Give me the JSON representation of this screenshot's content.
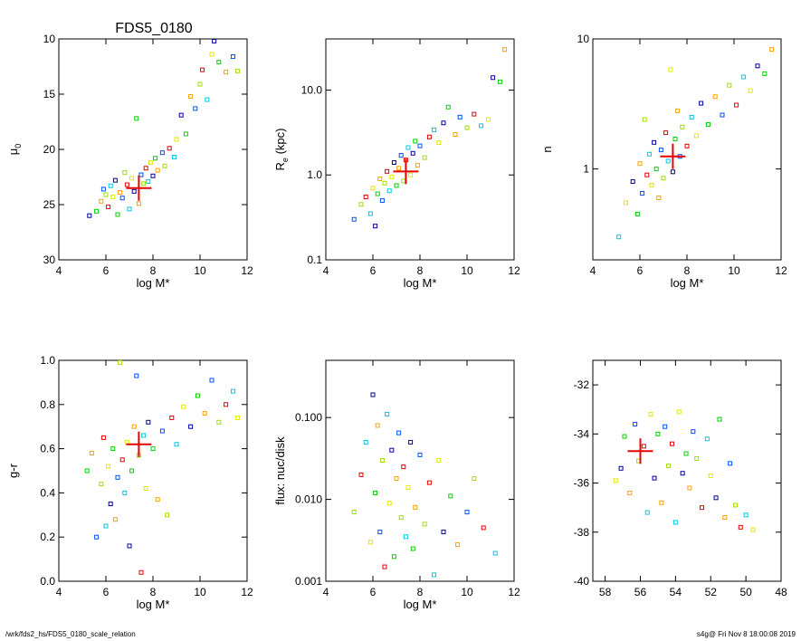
{
  "figure_title": "FDS5_0180",
  "footer": {
    "path": "/wrk/fds2_hs/FDS5_0180_scale_relation",
    "stamp": "s4g@  Fri Nov  8 18:00:08 2019"
  },
  "colors": {
    "color_scale": [
      "#0000a0",
      "#0050ff",
      "#00c8e6",
      "#00d200",
      "#a0e000",
      "#e6e600",
      "#ffa000",
      "#e60000"
    ],
    "highlight_cross": "#e60000"
  },
  "chart_data": [
    {
      "id": "mu0",
      "type": "scatter",
      "title": "FDS5_0180",
      "xlabel": "log M*",
      "ylabel_main": "μ",
      "ylabel_sub": "0",
      "xlim": [
        4,
        12
      ],
      "ylim": [
        30,
        10
      ],
      "xticks": [
        4,
        6,
        8,
        10,
        12
      ],
      "yticks": [
        10,
        15,
        20,
        25,
        30
      ],
      "ytick_labels": [
        "10",
        "15",
        "20",
        "25",
        "30"
      ],
      "marker": {
        "x": 7.4,
        "y": 23.5
      },
      "points": [
        {
          "x": 5.3,
          "y": 26.0
        },
        {
          "x": 5.6,
          "y": 25.6
        },
        {
          "x": 5.8,
          "y": 24.7
        },
        {
          "x": 5.9,
          "y": 23.6
        },
        {
          "x": 6.0,
          "y": 24.1
        },
        {
          "x": 6.1,
          "y": 25.2
        },
        {
          "x": 6.2,
          "y": 23.3
        },
        {
          "x": 6.3,
          "y": 24.3
        },
        {
          "x": 6.4,
          "y": 22.8
        },
        {
          "x": 6.5,
          "y": 25.9
        },
        {
          "x": 6.6,
          "y": 23.9
        },
        {
          "x": 6.7,
          "y": 24.4
        },
        {
          "x": 6.8,
          "y": 22.1
        },
        {
          "x": 6.9,
          "y": 23.2
        },
        {
          "x": 7.0,
          "y": 25.4
        },
        {
          "x": 7.1,
          "y": 22.6
        },
        {
          "x": 7.2,
          "y": 23.8
        },
        {
          "x": 7.3,
          "y": 17.2
        },
        {
          "x": 7.4,
          "y": 24.9
        },
        {
          "x": 7.5,
          "y": 22.3
        },
        {
          "x": 7.6,
          "y": 23.1
        },
        {
          "x": 7.7,
          "y": 21.7
        },
        {
          "x": 7.8,
          "y": 22.9
        },
        {
          "x": 7.9,
          "y": 21.2
        },
        {
          "x": 8.0,
          "y": 22.4
        },
        {
          "x": 8.1,
          "y": 20.8
        },
        {
          "x": 8.2,
          "y": 21.9
        },
        {
          "x": 8.4,
          "y": 20.3
        },
        {
          "x": 8.5,
          "y": 21.5
        },
        {
          "x": 8.7,
          "y": 19.9
        },
        {
          "x": 8.9,
          "y": 20.7
        },
        {
          "x": 9.0,
          "y": 19.1
        },
        {
          "x": 9.2,
          "y": 16.9
        },
        {
          "x": 9.4,
          "y": 18.6
        },
        {
          "x": 9.6,
          "y": 15.2
        },
        {
          "x": 9.8,
          "y": 16.3
        },
        {
          "x": 10.0,
          "y": 14.1
        },
        {
          "x": 10.1,
          "y": 12.8
        },
        {
          "x": 10.3,
          "y": 15.5
        },
        {
          "x": 10.5,
          "y": 11.4
        },
        {
          "x": 10.6,
          "y": 10.2
        },
        {
          "x": 10.8,
          "y": 12.1
        },
        {
          "x": 11.1,
          "y": 13.0
        },
        {
          "x": 11.4,
          "y": 11.6
        },
        {
          "x": 11.6,
          "y": 12.9
        }
      ]
    },
    {
      "id": "re",
      "type": "scatter",
      "log_y": true,
      "xlabel": "log M*",
      "ylabel_main": "R",
      "ylabel_sub": "e",
      "ylabel_tail": " (kpc)",
      "xlim": [
        4,
        12
      ],
      "ylim": [
        0.1,
        40
      ],
      "xticks": [
        4,
        6,
        8,
        10,
        12
      ],
      "yticks": [
        0.1,
        1.0,
        10.0
      ],
      "ytick_labels": [
        "0.1",
        "1.0",
        "10.0"
      ],
      "marker": {
        "x": 7.4,
        "y": 1.1
      },
      "points": [
        {
          "x": 5.2,
          "y": 0.3
        },
        {
          "x": 5.5,
          "y": 0.45
        },
        {
          "x": 5.7,
          "y": 0.55
        },
        {
          "x": 5.9,
          "y": 0.35
        },
        {
          "x": 6.0,
          "y": 0.7
        },
        {
          "x": 6.1,
          "y": 0.25
        },
        {
          "x": 6.2,
          "y": 0.6
        },
        {
          "x": 6.3,
          "y": 0.9
        },
        {
          "x": 6.4,
          "y": 0.5
        },
        {
          "x": 6.5,
          "y": 0.8
        },
        {
          "x": 6.6,
          "y": 1.1
        },
        {
          "x": 6.7,
          "y": 0.65
        },
        {
          "x": 6.8,
          "y": 0.95
        },
        {
          "x": 6.9,
          "y": 1.4
        },
        {
          "x": 7.0,
          "y": 0.75
        },
        {
          "x": 7.1,
          "y": 1.2
        },
        {
          "x": 7.2,
          "y": 1.7
        },
        {
          "x": 7.3,
          "y": 0.85
        },
        {
          "x": 7.4,
          "y": 1.5
        },
        {
          "x": 7.5,
          "y": 2.1
        },
        {
          "x": 7.6,
          "y": 1.0
        },
        {
          "x": 7.7,
          "y": 1.8
        },
        {
          "x": 7.8,
          "y": 2.5
        },
        {
          "x": 7.9,
          "y": 1.3
        },
        {
          "x": 8.0,
          "y": 2.2
        },
        {
          "x": 8.2,
          "y": 1.6
        },
        {
          "x": 8.4,
          "y": 2.8
        },
        {
          "x": 8.6,
          "y": 3.4
        },
        {
          "x": 8.8,
          "y": 2.4
        },
        {
          "x": 9.0,
          "y": 4.1
        },
        {
          "x": 9.2,
          "y": 6.3
        },
        {
          "x": 9.5,
          "y": 3.0
        },
        {
          "x": 9.7,
          "y": 4.8
        },
        {
          "x": 10.0,
          "y": 3.6
        },
        {
          "x": 10.3,
          "y": 5.2
        },
        {
          "x": 10.6,
          "y": 3.8
        },
        {
          "x": 10.9,
          "y": 4.5
        },
        {
          "x": 11.1,
          "y": 14.0
        },
        {
          "x": 11.4,
          "y": 12.5
        },
        {
          "x": 11.6,
          "y": 30.0
        }
      ]
    },
    {
      "id": "n",
      "type": "scatter",
      "log_y": true,
      "xlabel": "log M*",
      "ylabel_main": "n",
      "xlim": [
        4,
        12
      ],
      "ylim": [
        0.2,
        10
      ],
      "xticks": [
        4,
        6,
        8,
        10,
        12
      ],
      "yticks": [
        1,
        10
      ],
      "ytick_labels": [
        "1",
        "10"
      ],
      "marker": {
        "x": 7.4,
        "y": 1.25
      },
      "points": [
        {
          "x": 5.1,
          "y": 0.3
        },
        {
          "x": 5.4,
          "y": 0.55
        },
        {
          "x": 5.7,
          "y": 0.8
        },
        {
          "x": 5.9,
          "y": 0.45
        },
        {
          "x": 6.0,
          "y": 1.1
        },
        {
          "x": 6.1,
          "y": 0.65
        },
        {
          "x": 6.2,
          "y": 2.4
        },
        {
          "x": 6.3,
          "y": 0.9
        },
        {
          "x": 6.4,
          "y": 1.3
        },
        {
          "x": 6.5,
          "y": 0.75
        },
        {
          "x": 6.6,
          "y": 1.6
        },
        {
          "x": 6.7,
          "y": 1.0
        },
        {
          "x": 6.8,
          "y": 0.6
        },
        {
          "x": 6.9,
          "y": 1.4
        },
        {
          "x": 7.0,
          "y": 0.85
        },
        {
          "x": 7.1,
          "y": 1.9
        },
        {
          "x": 7.2,
          "y": 1.15
        },
        {
          "x": 7.3,
          "y": 5.8
        },
        {
          "x": 7.4,
          "y": 0.95
        },
        {
          "x": 7.5,
          "y": 1.7
        },
        {
          "x": 7.6,
          "y": 2.8
        },
        {
          "x": 7.7,
          "y": 1.25
        },
        {
          "x": 7.8,
          "y": 2.1
        },
        {
          "x": 8.0,
          "y": 1.5
        },
        {
          "x": 8.2,
          "y": 2.5
        },
        {
          "x": 8.4,
          "y": 1.8
        },
        {
          "x": 8.6,
          "y": 3.2
        },
        {
          "x": 8.9,
          "y": 2.2
        },
        {
          "x": 9.2,
          "y": 3.6
        },
        {
          "x": 9.5,
          "y": 2.6
        },
        {
          "x": 9.8,
          "y": 4.4
        },
        {
          "x": 10.1,
          "y": 3.1
        },
        {
          "x": 10.4,
          "y": 5.1
        },
        {
          "x": 10.7,
          "y": 4.0
        },
        {
          "x": 11.0,
          "y": 6.2
        },
        {
          "x": 11.3,
          "y": 5.4
        },
        {
          "x": 11.6,
          "y": 8.3
        }
      ]
    },
    {
      "id": "gr",
      "type": "scatter",
      "xlabel": "log M*",
      "ylabel_main": "g-r",
      "xlim": [
        4,
        12
      ],
      "ylim": [
        0.0,
        1.0
      ],
      "xticks": [
        4,
        6,
        8,
        10,
        12
      ],
      "yticks": [
        0.0,
        0.2,
        0.4,
        0.6,
        0.8,
        1.0
      ],
      "ytick_labels": [
        "0.0",
        "0.2",
        "0.4",
        "0.6",
        "0.8",
        "1.0"
      ],
      "marker": {
        "x": 7.4,
        "y": 0.62
      },
      "points": [
        {
          "x": 5.2,
          "y": 0.5
        },
        {
          "x": 5.4,
          "y": 0.58
        },
        {
          "x": 5.6,
          "y": 0.2
        },
        {
          "x": 5.8,
          "y": 0.44
        },
        {
          "x": 5.9,
          "y": 0.65
        },
        {
          "x": 6.0,
          "y": 0.25
        },
        {
          "x": 6.1,
          "y": 0.52
        },
        {
          "x": 6.2,
          "y": 0.35
        },
        {
          "x": 6.3,
          "y": 0.6
        },
        {
          "x": 6.4,
          "y": 0.28
        },
        {
          "x": 6.5,
          "y": 0.47
        },
        {
          "x": 6.6,
          "y": 0.99
        },
        {
          "x": 6.7,
          "y": 0.55
        },
        {
          "x": 6.8,
          "y": 0.4
        },
        {
          "x": 6.9,
          "y": 0.63
        },
        {
          "x": 7.0,
          "y": 0.16
        },
        {
          "x": 7.1,
          "y": 0.5
        },
        {
          "x": 7.2,
          "y": 0.7
        },
        {
          "x": 7.3,
          "y": 0.93
        },
        {
          "x": 7.4,
          "y": 0.57
        },
        {
          "x": 7.5,
          "y": 0.04
        },
        {
          "x": 7.6,
          "y": 0.66
        },
        {
          "x": 7.7,
          "y": 0.42
        },
        {
          "x": 7.8,
          "y": 0.72
        },
        {
          "x": 8.0,
          "y": 0.6
        },
        {
          "x": 8.2,
          "y": 0.37
        },
        {
          "x": 8.4,
          "y": 0.68
        },
        {
          "x": 8.6,
          "y": 0.3
        },
        {
          "x": 8.8,
          "y": 0.74
        },
        {
          "x": 9.0,
          "y": 0.62
        },
        {
          "x": 9.3,
          "y": 0.79
        },
        {
          "x": 9.6,
          "y": 0.7
        },
        {
          "x": 9.9,
          "y": 0.84
        },
        {
          "x": 10.2,
          "y": 0.76
        },
        {
          "x": 10.5,
          "y": 0.91
        },
        {
          "x": 10.8,
          "y": 0.72
        },
        {
          "x": 11.1,
          "y": 0.8
        },
        {
          "x": 11.4,
          "y": 0.86
        },
        {
          "x": 11.6,
          "y": 0.74
        }
      ]
    },
    {
      "id": "flux",
      "type": "scatter",
      "log_y": true,
      "xlabel": "log M*",
      "ylabel_main": "flux: nuc/disk",
      "xlim": [
        4,
        12
      ],
      "ylim": [
        0.001,
        0.5
      ],
      "xticks": [
        4,
        6,
        8,
        10,
        12
      ],
      "yticks": [
        0.001,
        0.01,
        0.1
      ],
      "ytick_labels": [
        "0.001",
        "0.010",
        "0.100"
      ],
      "marker": null,
      "points": [
        {
          "x": 5.2,
          "y": 0.007
        },
        {
          "x": 5.5,
          "y": 0.02
        },
        {
          "x": 5.7,
          "y": 0.05
        },
        {
          "x": 5.9,
          "y": 0.003
        },
        {
          "x": 6.0,
          "y": 0.19
        },
        {
          "x": 6.1,
          "y": 0.012
        },
        {
          "x": 6.2,
          "y": 0.08
        },
        {
          "x": 6.3,
          "y": 0.004
        },
        {
          "x": 6.4,
          "y": 0.03
        },
        {
          "x": 6.5,
          "y": 0.0015
        },
        {
          "x": 6.6,
          "y": 0.11
        },
        {
          "x": 6.7,
          "y": 0.009
        },
        {
          "x": 6.8,
          "y": 0.04
        },
        {
          "x": 6.9,
          "y": 0.002
        },
        {
          "x": 7.0,
          "y": 0.018
        },
        {
          "x": 7.1,
          "y": 0.065
        },
        {
          "x": 7.2,
          "y": 0.006
        },
        {
          "x": 7.3,
          "y": 0.025
        },
        {
          "x": 7.4,
          "y": 0.0035
        },
        {
          "x": 7.5,
          "y": 0.014
        },
        {
          "x": 7.6,
          "y": 0.05
        },
        {
          "x": 7.7,
          "y": 0.0025
        },
        {
          "x": 7.8,
          "y": 0.008
        },
        {
          "x": 8.0,
          "y": 0.035
        },
        {
          "x": 8.2,
          "y": 0.005
        },
        {
          "x": 8.4,
          "y": 0.016
        },
        {
          "x": 8.6,
          "y": 0.0012
        },
        {
          "x": 8.8,
          "y": 0.03
        },
        {
          "x": 9.0,
          "y": 0.004
        },
        {
          "x": 9.3,
          "y": 0.011
        },
        {
          "x": 9.6,
          "y": 0.0028
        },
        {
          "x": 10.0,
          "y": 0.007
        },
        {
          "x": 10.3,
          "y": 0.018
        },
        {
          "x": 10.7,
          "y": 0.0045
        },
        {
          "x": 11.2,
          "y": 0.0022
        }
      ]
    },
    {
      "id": "pos",
      "type": "scatter",
      "xlabel": "",
      "ylabel_main": "",
      "xlim": [
        58.7,
        48
      ],
      "ylim": [
        -40,
        -31
      ],
      "xticks": [
        58,
        56,
        54,
        52,
        50,
        48
      ],
      "yticks": [
        -40,
        -38,
        -36,
        -34,
        -32
      ],
      "ytick_labels": [
        "-40",
        "-38",
        "-36",
        "-34",
        "-32"
      ],
      "marker": {
        "x": 56.0,
        "y": -34.7
      },
      "points": [
        {
          "x": 57.4,
          "y": -35.9
        },
        {
          "x": 57.1,
          "y": -35.4
        },
        {
          "x": 56.9,
          "y": -34.1
        },
        {
          "x": 56.6,
          "y": -36.4
        },
        {
          "x": 56.3,
          "y": -33.6
        },
        {
          "x": 56.1,
          "y": -35.1
        },
        {
          "x": 55.8,
          "y": -34.5
        },
        {
          "x": 55.6,
          "y": -37.2
        },
        {
          "x": 55.4,
          "y": -33.2
        },
        {
          "x": 55.2,
          "y": -35.8
        },
        {
          "x": 55.0,
          "y": -34.0
        },
        {
          "x": 54.8,
          "y": -36.8
        },
        {
          "x": 54.6,
          "y": -33.7
        },
        {
          "x": 54.4,
          "y": -35.3
        },
        {
          "x": 54.2,
          "y": -34.4
        },
        {
          "x": 54.0,
          "y": -37.6
        },
        {
          "x": 53.8,
          "y": -33.1
        },
        {
          "x": 53.6,
          "y": -35.6
        },
        {
          "x": 53.4,
          "y": -34.8
        },
        {
          "x": 53.2,
          "y": -36.2
        },
        {
          "x": 53.0,
          "y": -33.9
        },
        {
          "x": 52.8,
          "y": -35.0
        },
        {
          "x": 52.5,
          "y": -37.0
        },
        {
          "x": 52.2,
          "y": -34.2
        },
        {
          "x": 52.0,
          "y": -35.7
        },
        {
          "x": 51.7,
          "y": -36.6
        },
        {
          "x": 51.5,
          "y": -33.4
        },
        {
          "x": 51.2,
          "y": -37.4
        },
        {
          "x": 50.9,
          "y": -35.2
        },
        {
          "x": 50.6,
          "y": -36.9
        },
        {
          "x": 50.3,
          "y": -37.8
        },
        {
          "x": 50.0,
          "y": -37.3
        },
        {
          "x": 49.6,
          "y": -37.9
        }
      ]
    }
  ]
}
